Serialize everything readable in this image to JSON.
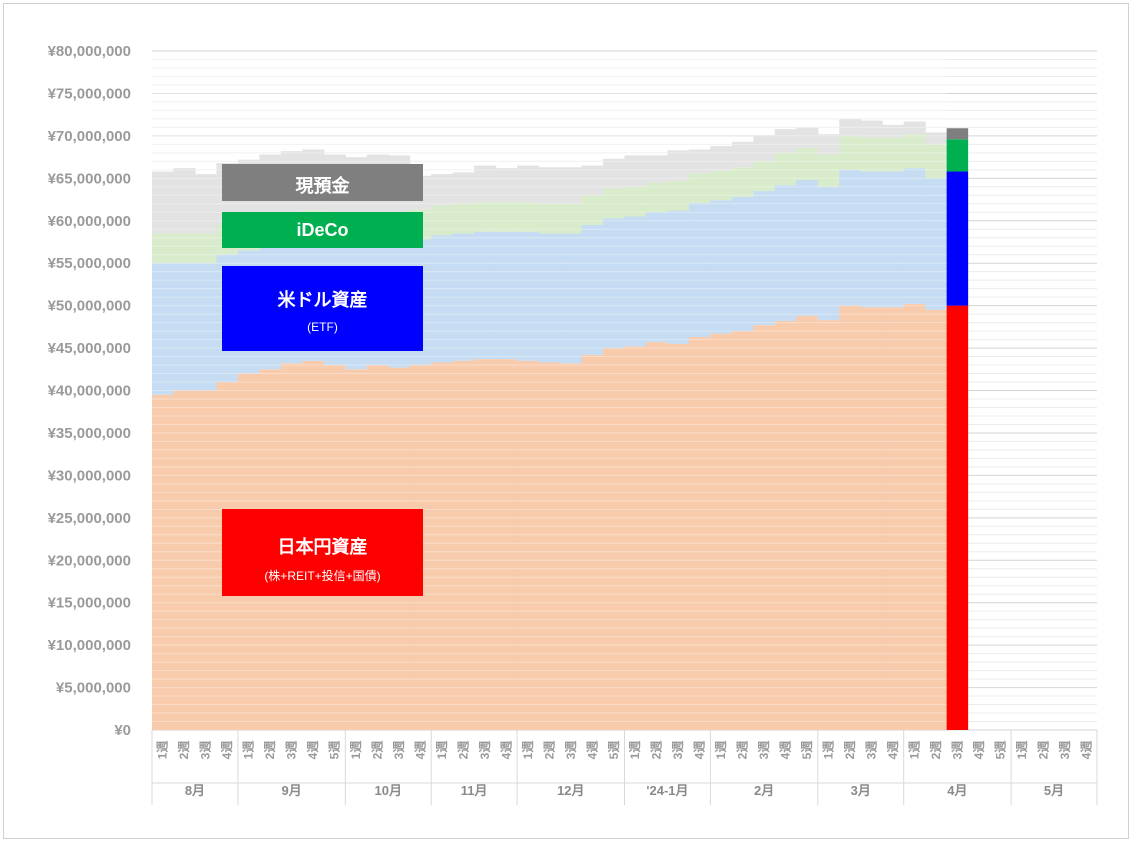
{
  "chart_data": {
    "type": "area",
    "title": "",
    "xlabel": "",
    "ylabel": "",
    "ylim": [
      0,
      80000000
    ],
    "y_ticks": [
      "¥0",
      "¥5,000,000",
      "¥10,000,000",
      "¥15,000,000",
      "¥20,000,000",
      "¥25,000,000",
      "¥30,000,000",
      "¥35,000,000",
      "¥40,000,000",
      "¥45,000,000",
      "¥50,000,000",
      "¥55,000,000",
      "¥60,000,000",
      "¥65,000,000",
      "¥70,000,000",
      "¥75,000,000",
      "¥80,000,000"
    ],
    "grid": true,
    "stacked": true,
    "months": [
      {
        "label": "8月",
        "weeks": [
          "1週",
          "2週",
          "3週",
          "4週"
        ]
      },
      {
        "label": "9月",
        "weeks": [
          "1週",
          "2週",
          "3週",
          "4週",
          "5週"
        ]
      },
      {
        "label": "10月",
        "weeks": [
          "1週",
          "2週",
          "3週",
          "4週"
        ]
      },
      {
        "label": "11月",
        "weeks": [
          "1週",
          "2週",
          "3週",
          "4週"
        ]
      },
      {
        "label": "12月",
        "weeks": [
          "1週",
          "2週",
          "3週",
          "4週",
          "5週"
        ]
      },
      {
        "label": "'24-1月",
        "weeks": [
          "1週",
          "2週",
          "3週",
          "4週"
        ]
      },
      {
        "label": "2月",
        "weeks": [
          "1週",
          "2週",
          "3週",
          "4週",
          "5週"
        ]
      },
      {
        "label": "3月",
        "weeks": [
          "1週",
          "2週",
          "3週",
          "4週"
        ]
      },
      {
        "label": "4月",
        "weeks": [
          "1週",
          "2週",
          "3週",
          "4週",
          "5週"
        ]
      },
      {
        "label": "5月",
        "weeks": [
          "1週",
          "2週",
          "3週",
          "4週"
        ]
      }
    ],
    "series": [
      {
        "key": "jpy_assets",
        "values": [
          39500000,
          40000000,
          40000000,
          41000000,
          42000000,
          42500000,
          43200000,
          43500000,
          43000000,
          42500000,
          43000000,
          42700000,
          43000000,
          43300000,
          43500000,
          43700000,
          43700000,
          43500000,
          43300000,
          43200000,
          44200000,
          45000000,
          45200000,
          45700000,
          45500000,
          46300000,
          46700000,
          47000000,
          47700000,
          48200000,
          48800000,
          48300000,
          50000000,
          49800000,
          49800000,
          50200000,
          49500000,
          50000000,
          null,
          null,
          null,
          null,
          null
        ],
        "light_color": "#f8cbad",
        "highlight_color": "#ff0000"
      },
      {
        "key": "usd_assets",
        "values": [
          15500000,
          15000000,
          15000000,
          15000000,
          14500000,
          14500000,
          14200000,
          14200000,
          14300000,
          14500000,
          14500000,
          14800000,
          14800000,
          15000000,
          15000000,
          15000000,
          15000000,
          15200000,
          15200000,
          15300000,
          15300000,
          15300000,
          15300000,
          15300000,
          15700000,
          15800000,
          15700000,
          15800000,
          15800000,
          16000000,
          16000000,
          15700000,
          16000000,
          16000000,
          16000000,
          16000000,
          15500000,
          15800000,
          null,
          null,
          null,
          null,
          null
        ],
        "light_color": "#c5dcf2",
        "highlight_color": "#0000ff"
      },
      {
        "key": "ideco",
        "values": [
          3500000,
          3500000,
          3500000,
          3500000,
          3500000,
          3500000,
          3500000,
          3500000,
          3500000,
          3500000,
          3500000,
          3500000,
          3500000,
          3500000,
          3500000,
          3500000,
          3500000,
          3500000,
          3500000,
          3500000,
          3500000,
          3500000,
          3500000,
          3500000,
          3500000,
          3500000,
          3500000,
          3500000,
          3500000,
          3800000,
          3800000,
          3800000,
          4000000,
          4000000,
          4000000,
          4000000,
          4000000,
          3800000,
          null,
          null,
          null,
          null,
          null
        ],
        "light_color": "#d8ebcb",
        "highlight_color": "#00b050"
      },
      {
        "key": "cash",
        "values": [
          7300000,
          7700000,
          7000000,
          7300000,
          7200000,
          7300000,
          7300000,
          7200000,
          7000000,
          7000000,
          6800000,
          6700000,
          4000000,
          3700000,
          3700000,
          4300000,
          4000000,
          4300000,
          4300000,
          4300000,
          3500000,
          3500000,
          3700000,
          3200000,
          3600000,
          2800000,
          2900000,
          3000000,
          3000000,
          2800000,
          2400000,
          2400000,
          2000000,
          2000000,
          1500000,
          1500000,
          1400000,
          1300000,
          null,
          null,
          null,
          null,
          null
        ],
        "light_color": "#e3e3e3",
        "highlight_color": "#7f7f7f"
      }
    ],
    "highlight_index": 37,
    "annotations": [
      {
        "key": "cash",
        "title": "現預金",
        "sub": "",
        "color": "#7f7f7f"
      },
      {
        "key": "ideco",
        "title": "iDeCo",
        "sub": "",
        "color": "#00b050"
      },
      {
        "key": "usd_assets",
        "title": "米ドル資産",
        "sub": "(ETF)",
        "color": "#0000ff"
      },
      {
        "key": "jpy_assets",
        "title": "日本円資産",
        "sub": "(株+REIT+投信+国債)",
        "color": "#ff0000"
      }
    ]
  }
}
